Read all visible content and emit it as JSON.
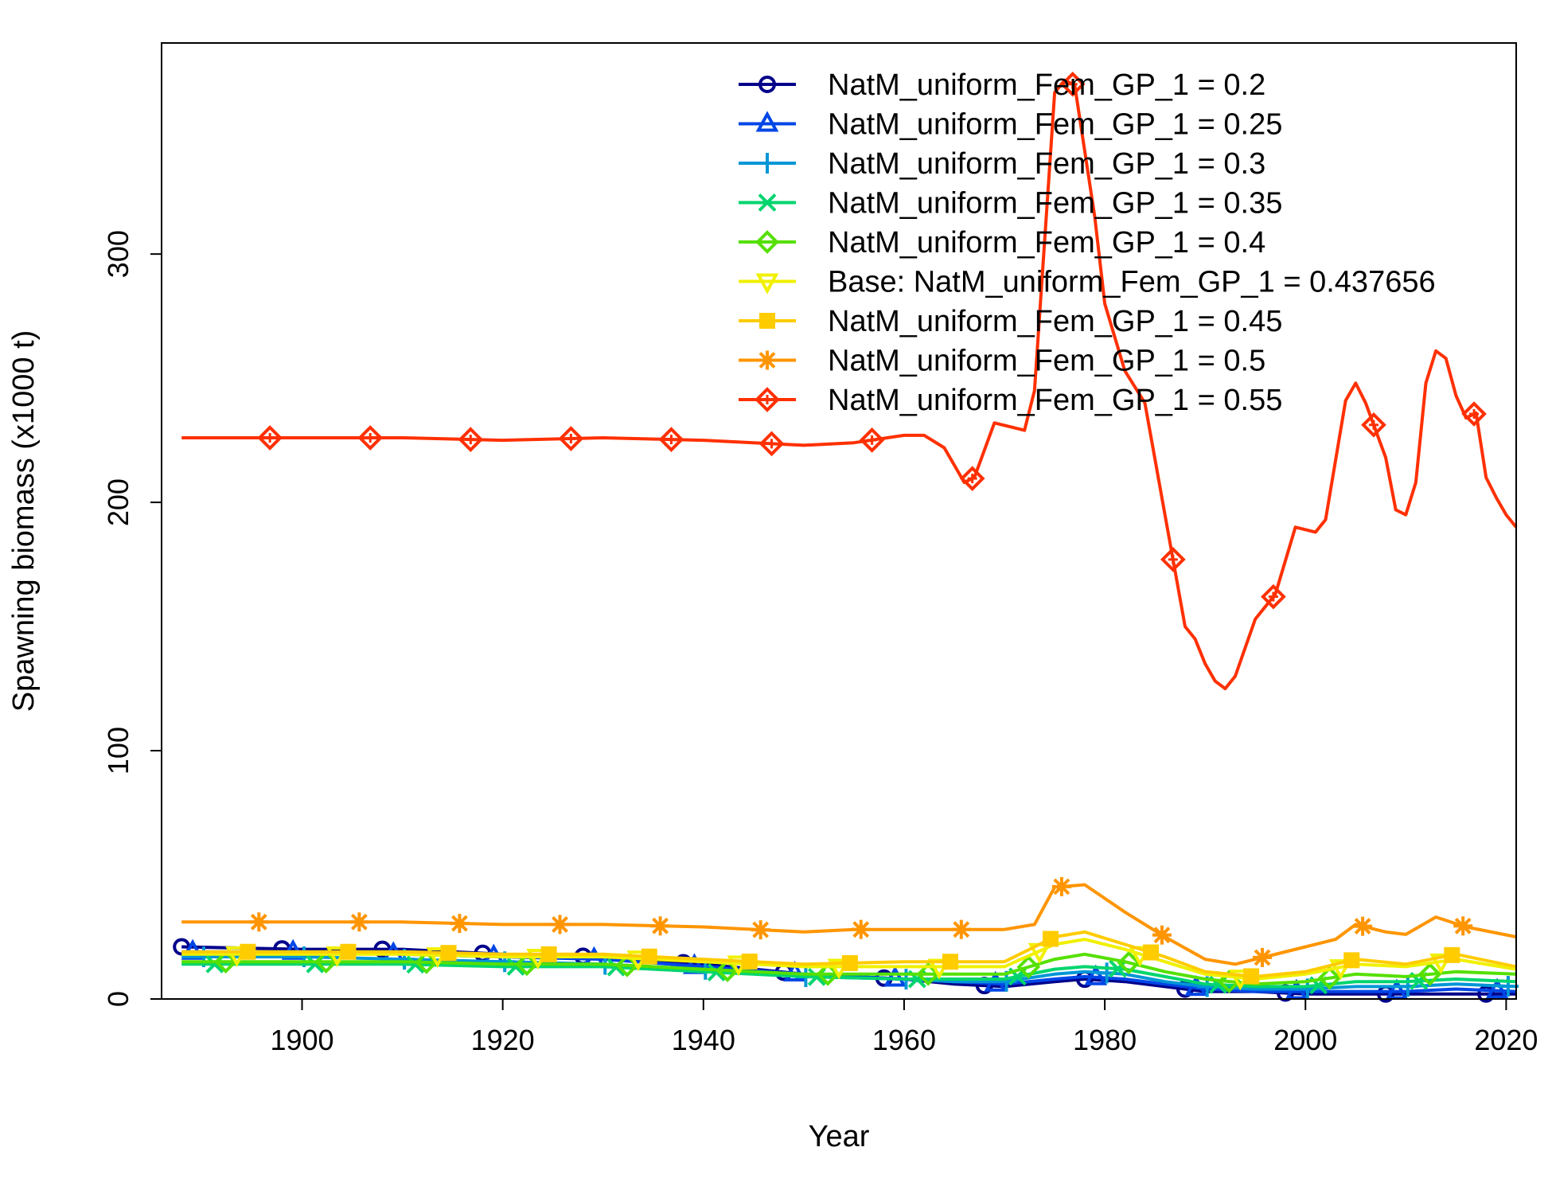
{
  "chart_data": {
    "type": "line",
    "xlabel": "Year",
    "ylabel": "Spawning biomass (x1000 t)",
    "xlim": [
      1886,
      2021
    ],
    "ylim": [
      0,
      385
    ],
    "xticks": [
      1900,
      1920,
      1940,
      1960,
      1980,
      2000,
      2020
    ],
    "yticks": [
      0,
      100,
      200,
      300
    ],
    "legend_position": "top-right",
    "grid": false,
    "series": [
      {
        "name": "NatM_uniform_Fem_GP_1 = 0.2",
        "color": "#00008B",
        "marker": "circle",
        "points": [
          [
            1888,
            21
          ],
          [
            1900,
            20
          ],
          [
            1910,
            20
          ],
          [
            1920,
            18
          ],
          [
            1930,
            17
          ],
          [
            1940,
            14
          ],
          [
            1950,
            10
          ],
          [
            1960,
            8
          ],
          [
            1965,
            6
          ],
          [
            1970,
            5
          ],
          [
            1975,
            7
          ],
          [
            1978,
            8
          ],
          [
            1982,
            7
          ],
          [
            1986,
            5
          ],
          [
            1990,
            3
          ],
          [
            1995,
            3
          ],
          [
            2000,
            2
          ],
          [
            2005,
            2
          ],
          [
            2010,
            2
          ],
          [
            2015,
            2
          ],
          [
            2021,
            2
          ]
        ]
      },
      {
        "name": "NatM_uniform_Fem_GP_1 = 0.25",
        "color": "#0046E6",
        "marker": "triangle-up",
        "points": [
          [
            1888,
            19
          ],
          [
            1900,
            19
          ],
          [
            1910,
            18
          ],
          [
            1920,
            17
          ],
          [
            1930,
            16
          ],
          [
            1940,
            13
          ],
          [
            1950,
            10
          ],
          [
            1960,
            8
          ],
          [
            1965,
            7
          ],
          [
            1970,
            6
          ],
          [
            1975,
            8
          ],
          [
            1978,
            9
          ],
          [
            1982,
            8
          ],
          [
            1986,
            6
          ],
          [
            1990,
            4
          ],
          [
            1995,
            3
          ],
          [
            2000,
            3
          ],
          [
            2005,
            3
          ],
          [
            2010,
            3
          ],
          [
            2015,
            4
          ],
          [
            2021,
            3
          ]
        ]
      },
      {
        "name": "NatM_uniform_Fem_GP_1 = 0.3",
        "color": "#0096D6",
        "marker": "plus",
        "points": [
          [
            1888,
            17
          ],
          [
            1900,
            17
          ],
          [
            1910,
            16
          ],
          [
            1920,
            15
          ],
          [
            1930,
            14
          ],
          [
            1940,
            12
          ],
          [
            1950,
            9
          ],
          [
            1960,
            8
          ],
          [
            1965,
            7
          ],
          [
            1970,
            7
          ],
          [
            1975,
            10
          ],
          [
            1978,
            11
          ],
          [
            1982,
            10
          ],
          [
            1986,
            7
          ],
          [
            1990,
            5
          ],
          [
            1995,
            4
          ],
          [
            2000,
            4
          ],
          [
            2005,
            5
          ],
          [
            2010,
            5
          ],
          [
            2015,
            6
          ],
          [
            2021,
            5
          ]
        ]
      },
      {
        "name": "NatM_uniform_Fem_GP_1 = 0.35",
        "color": "#00D56E",
        "marker": "x",
        "points": [
          [
            1888,
            14
          ],
          [
            1900,
            14
          ],
          [
            1910,
            14
          ],
          [
            1920,
            13
          ],
          [
            1930,
            13
          ],
          [
            1940,
            11
          ],
          [
            1950,
            9
          ],
          [
            1960,
            8
          ],
          [
            1965,
            8
          ],
          [
            1970,
            8
          ],
          [
            1975,
            12
          ],
          [
            1978,
            13
          ],
          [
            1982,
            12
          ],
          [
            1986,
            9
          ],
          [
            1990,
            6
          ],
          [
            1995,
            5
          ],
          [
            2000,
            5
          ],
          [
            2005,
            7
          ],
          [
            2010,
            7
          ],
          [
            2015,
            8
          ],
          [
            2021,
            7
          ]
        ]
      },
      {
        "name": "NatM_uniform_Fem_GP_1 = 0.4",
        "color": "#55E000",
        "marker": "diamond-open",
        "points": [
          [
            1888,
            15
          ],
          [
            1900,
            15
          ],
          [
            1910,
            15
          ],
          [
            1920,
            14
          ],
          [
            1930,
            14
          ],
          [
            1940,
            12
          ],
          [
            1950,
            10
          ],
          [
            1960,
            10
          ],
          [
            1965,
            10
          ],
          [
            1970,
            10
          ],
          [
            1975,
            16
          ],
          [
            1978,
            18
          ],
          [
            1982,
            15
          ],
          [
            1986,
            11
          ],
          [
            1990,
            8
          ],
          [
            1995,
            6
          ],
          [
            2000,
            7
          ],
          [
            2005,
            10
          ],
          [
            2010,
            9
          ],
          [
            2015,
            11
          ],
          [
            2021,
            10
          ]
        ]
      },
      {
        "name": "Base: NatM_uniform_Fem_GP_1 = 0.437656",
        "color": "#F0F000",
        "marker": "triangle-down",
        "points": [
          [
            1888,
            18
          ],
          [
            1900,
            18
          ],
          [
            1910,
            18
          ],
          [
            1920,
            17
          ],
          [
            1930,
            17
          ],
          [
            1940,
            15
          ],
          [
            1950,
            13
          ],
          [
            1960,
            13
          ],
          [
            1965,
            13
          ],
          [
            1970,
            13
          ],
          [
            1975,
            22
          ],
          [
            1978,
            24
          ],
          [
            1982,
            20
          ],
          [
            1986,
            15
          ],
          [
            1990,
            10
          ],
          [
            1995,
            8
          ],
          [
            2000,
            10
          ],
          [
            2005,
            14
          ],
          [
            2010,
            13
          ],
          [
            2015,
            16
          ],
          [
            2021,
            12
          ]
        ]
      },
      {
        "name": "NatM_uniform_Fem_GP_1 = 0.45",
        "color": "#FFCC00",
        "marker": "square",
        "points": [
          [
            1888,
            19
          ],
          [
            1900,
            19
          ],
          [
            1910,
            19
          ],
          [
            1920,
            18
          ],
          [
            1930,
            18
          ],
          [
            1940,
            16
          ],
          [
            1950,
            14
          ],
          [
            1960,
            15
          ],
          [
            1965,
            15
          ],
          [
            1970,
            15
          ],
          [
            1975,
            25
          ],
          [
            1978,
            27
          ],
          [
            1982,
            22
          ],
          [
            1986,
            17
          ],
          [
            1990,
            11
          ],
          [
            1995,
            9
          ],
          [
            2000,
            11
          ],
          [
            2005,
            16
          ],
          [
            2010,
            14
          ],
          [
            2015,
            18
          ],
          [
            2021,
            13
          ]
        ]
      },
      {
        "name": "NatM_uniform_Fem_GP_1 = 0.5",
        "color": "#FF9500",
        "marker": "asterisk",
        "points": [
          [
            1888,
            31
          ],
          [
            1900,
            31
          ],
          [
            1910,
            31
          ],
          [
            1920,
            30
          ],
          [
            1930,
            30
          ],
          [
            1940,
            29
          ],
          [
            1950,
            27
          ],
          [
            1955,
            28
          ],
          [
            1960,
            28
          ],
          [
            1965,
            28
          ],
          [
            1970,
            28
          ],
          [
            1973,
            30
          ],
          [
            1975,
            45
          ],
          [
            1978,
            46
          ],
          [
            1982,
            35
          ],
          [
            1986,
            25
          ],
          [
            1990,
            16
          ],
          [
            1993,
            14
          ],
          [
            1996,
            17
          ],
          [
            2000,
            21
          ],
          [
            2003,
            24
          ],
          [
            2005,
            30
          ],
          [
            2008,
            27
          ],
          [
            2010,
            26
          ],
          [
            2013,
            33
          ],
          [
            2016,
            29
          ],
          [
            2021,
            25
          ]
        ]
      },
      {
        "name": "NatM_uniform_Fem_GP_1 = 0.55",
        "color": "#FF3000",
        "marker": "diamond",
        "points": [
          [
            1888,
            226
          ],
          [
            1900,
            226
          ],
          [
            1910,
            226
          ],
          [
            1920,
            225
          ],
          [
            1930,
            226
          ],
          [
            1940,
            225
          ],
          [
            1945,
            224
          ],
          [
            1950,
            223
          ],
          [
            1955,
            224
          ],
          [
            1960,
            227
          ],
          [
            1962,
            227
          ],
          [
            1964,
            222
          ],
          [
            1966,
            208
          ],
          [
            1967,
            210
          ],
          [
            1969,
            232
          ],
          [
            1972,
            229
          ],
          [
            1973,
            245
          ],
          [
            1975,
            365
          ],
          [
            1976,
            370
          ],
          [
            1977,
            368
          ],
          [
            1979,
            315
          ],
          [
            1980,
            280
          ],
          [
            1982,
            253
          ],
          [
            1984,
            240
          ],
          [
            1986,
            195
          ],
          [
            1988,
            150
          ],
          [
            1989,
            145
          ],
          [
            1990,
            135
          ],
          [
            1991,
            128
          ],
          [
            1992,
            125
          ],
          [
            1993,
            130
          ],
          [
            1995,
            153
          ],
          [
            1997,
            163
          ],
          [
            1999,
            190
          ],
          [
            2001,
            188
          ],
          [
            2002,
            193
          ],
          [
            2004,
            241
          ],
          [
            2005,
            248
          ],
          [
            2006,
            240
          ],
          [
            2008,
            218
          ],
          [
            2009,
            197
          ],
          [
            2010,
            195
          ],
          [
            2011,
            208
          ],
          [
            2012,
            248
          ],
          [
            2013,
            261
          ],
          [
            2014,
            258
          ],
          [
            2015,
            243
          ],
          [
            2016,
            234
          ],
          [
            2017,
            236
          ],
          [
            2018,
            210
          ],
          [
            2019,
            202
          ],
          [
            2020,
            195
          ],
          [
            2021,
            190
          ]
        ]
      }
    ]
  }
}
